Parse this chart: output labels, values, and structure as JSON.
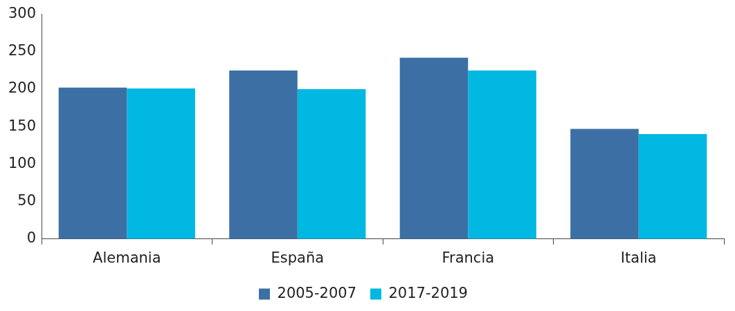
{
  "chart_data": {
    "type": "bar",
    "categories": [
      "Alemania",
      "España",
      "Francia",
      "Italia"
    ],
    "series": [
      {
        "name": "2005-2007",
        "color": "#3c70a4",
        "values": [
          202,
          225,
          242,
          147
        ]
      },
      {
        "name": "2017-2019",
        "color": "#00b8e2",
        "values": [
          201,
          200,
          225,
          140
        ]
      }
    ],
    "ylim": [
      0,
      300
    ],
    "yticks": [
      0,
      50,
      100,
      150,
      200,
      250,
      300
    ],
    "grid": false,
    "legend": "bottom"
  }
}
